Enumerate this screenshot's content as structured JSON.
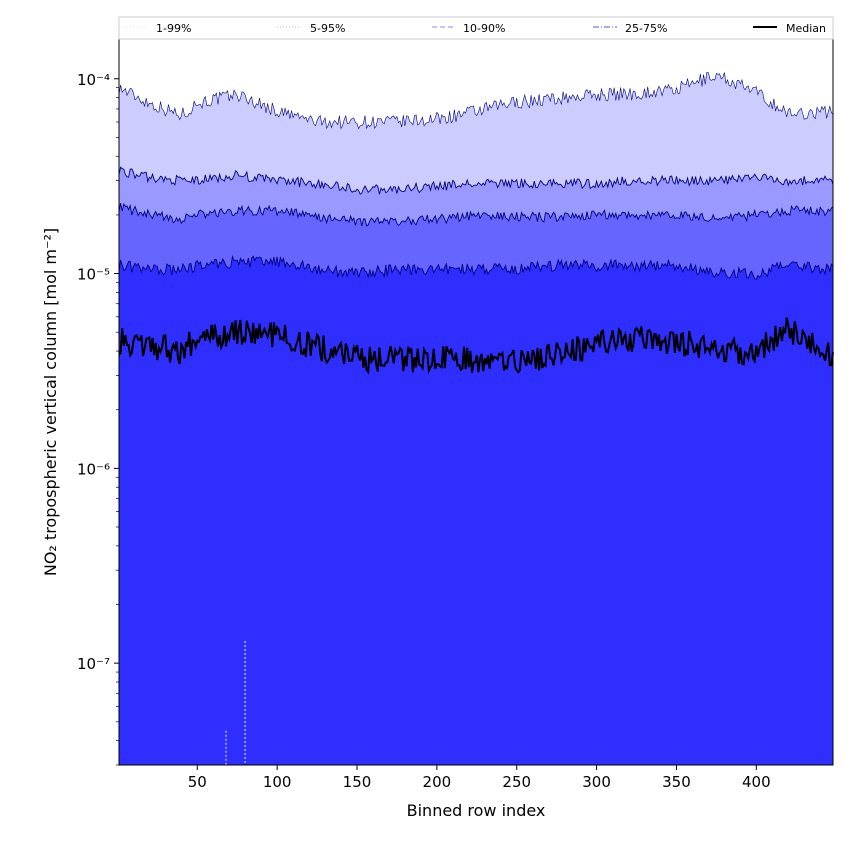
{
  "chart_data": {
    "type": "area",
    "xlabel": "Binned row index",
    "ylabel": "NO₂ tropospheric vertical column [mol m⁻²]",
    "xlim": [
      1,
      448
    ],
    "ylim": [
      3e-08,
      0.00016
    ],
    "yscale": "log",
    "x_ticks": [
      50,
      100,
      150,
      200,
      250,
      300,
      350,
      400
    ],
    "y_ticks": [
      {
        "value": 1e-07,
        "label": "10⁻⁷"
      },
      {
        "value": 1e-06,
        "label": "10⁻⁶"
      },
      {
        "value": 1e-05,
        "label": "10⁻⁵"
      },
      {
        "value": 0.0001,
        "label": "10⁻⁴"
      }
    ],
    "legend": {
      "placement": "top",
      "entries": [
        {
          "label": "1-99%",
          "color": "#dedef8",
          "style": "dotted"
        },
        {
          "label": "5-95%",
          "color": "#b8b8f0",
          "style": "dotted"
        },
        {
          "label": "10-90%",
          "color": "#8888ee",
          "style": "dashed"
        },
        {
          "label": "25-75%",
          "color": "#5555e6",
          "style": "dashdot"
        },
        {
          "label": "Median",
          "color": "#000000",
          "style": "solid"
        }
      ]
    },
    "band_colors": {
      "p95": "#ccccff",
      "p90": "#9999ff",
      "p75": "#6666ff",
      "p25": "#2e2eff",
      "outline": "#000080"
    },
    "x": [
      1,
      20,
      40,
      50,
      75,
      100,
      125,
      150,
      175,
      200,
      225,
      250,
      275,
      300,
      325,
      350,
      375,
      400,
      420,
      448
    ],
    "series": [
      {
        "name": "95%",
        "values": [
          9e-05,
          7.5e-05,
          6.5e-05,
          7.5e-05,
          8.3e-05,
          6.8e-05,
          6e-05,
          6e-05,
          6e-05,
          6.2e-05,
          6.8e-05,
          7.6e-05,
          7.9e-05,
          8.3e-05,
          8.4e-05,
          8.8e-05,
          0.000105,
          8.5e-05,
          6.6e-05,
          6.8e-05
        ]
      },
      {
        "name": "90%",
        "values": [
          3.4e-05,
          3.1e-05,
          3e-05,
          3e-05,
          3.2e-05,
          3e-05,
          2.9e-05,
          2.7e-05,
          2.7e-05,
          2.8e-05,
          2.9e-05,
          2.9e-05,
          2.9e-05,
          2.9e-05,
          3e-05,
          3e-05,
          3e-05,
          3.1e-05,
          3e-05,
          3e-05
        ]
      },
      {
        "name": "75%",
        "values": [
          2.2e-05,
          2e-05,
          1.9e-05,
          2e-05,
          2.1e-05,
          2.1e-05,
          1.95e-05,
          1.85e-05,
          1.85e-05,
          1.9e-05,
          2e-05,
          1.95e-05,
          1.95e-05,
          2e-05,
          2e-05,
          2e-05,
          1.9e-05,
          2e-05,
          2.1e-05,
          2.1e-05
        ]
      },
      {
        "name": "25%",
        "values": [
          1.1e-05,
          1.05e-05,
          1.05e-05,
          1.1e-05,
          1.15e-05,
          1.15e-05,
          1.05e-05,
          1e-05,
          1.05e-05,
          1.05e-05,
          1.05e-05,
          1.05e-05,
          1.1e-05,
          1.1e-05,
          1.1e-05,
          1.1e-05,
          1e-05,
          1e-05,
          1.1e-05,
          1.05e-05
        ]
      },
      {
        "name": "Median",
        "values": [
          4.5e-06,
          4.3e-06,
          4e-06,
          4.6e-06,
          5e-06,
          4.8e-06,
          4.2e-06,
          3.7e-06,
          3.6e-06,
          3.7e-06,
          3.6e-06,
          3.5e-06,
          3.8e-06,
          4.3e-06,
          4.6e-06,
          4.5e-06,
          4e-06,
          4e-06,
          5.2e-06,
          3.8e-06
        ]
      }
    ]
  }
}
